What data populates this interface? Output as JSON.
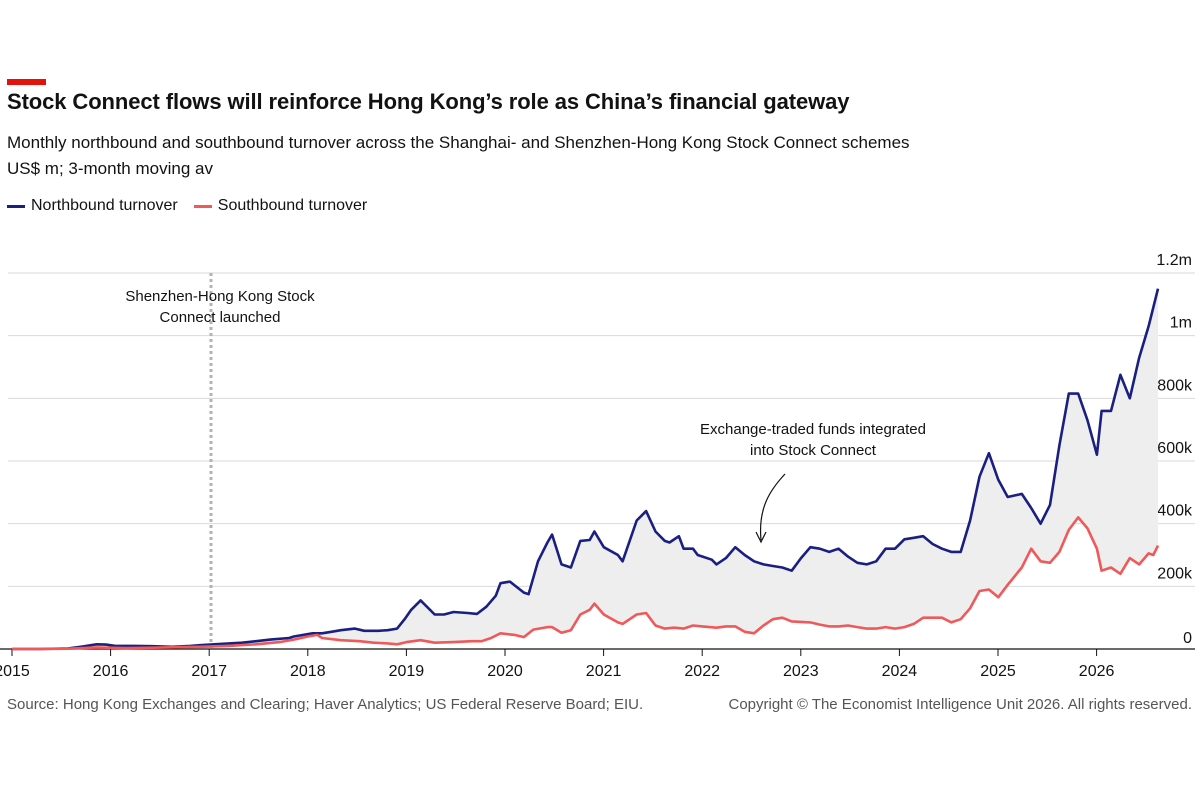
{
  "header": {
    "title": "Stock Connect flows will reinforce Hong Kong’s role as China’s financial gateway",
    "subtitle": "Monthly northbound and southbound turnover across the Shanghai- and Shenzhen-Hong Kong Stock Connect schemes",
    "units": "US$ m; 3-month moving av"
  },
  "colors": {
    "accent": "#e3120b",
    "northbound": "#1a1f80",
    "southbound": "#f0585a",
    "fill": "#eeeeee",
    "grid": "#d9d9d9"
  },
  "footer": {
    "source": "Source: Hong Kong Exchanges and Clearing; Haver Analytics; US Federal Reserve Board; EIU.",
    "copyright": "Copyright © The Economist Intelligence Unit 2026. All rights reserved."
  },
  "chart_data": {
    "type": "line",
    "title": "Stock Connect flows will reinforce Hong Kong’s role as China’s financial gateway",
    "ylabel": "US$ m; 3-month moving av",
    "xlim": [
      2015,
      2026.65
    ],
    "ylim": [
      0,
      1200000
    ],
    "grid": true,
    "legend": "top-left",
    "y_ticks": [
      {
        "value": 0,
        "label": "0"
      },
      {
        "value": 200000,
        "label": "200k"
      },
      {
        "value": 400000,
        "label": "400k"
      },
      {
        "value": 600000,
        "label": "600k"
      },
      {
        "value": 800000,
        "label": "800k"
      },
      {
        "value": 1000000,
        "label": "1m"
      },
      {
        "value": 1200000,
        "label": "1.2m"
      }
    ],
    "x_ticks": [
      {
        "value": 2015,
        "label": "2015"
      },
      {
        "value": 2016,
        "label": "2016"
      },
      {
        "value": 2017,
        "label": "2017"
      },
      {
        "value": 2018,
        "label": "2018"
      },
      {
        "value": 2019,
        "label": "2019"
      },
      {
        "value": 2020,
        "label": "2020"
      },
      {
        "value": 2021,
        "label": "2021"
      },
      {
        "value": 2022,
        "label": "2022"
      },
      {
        "value": 2023,
        "label": "2023"
      },
      {
        "value": 2024,
        "label": "2024"
      },
      {
        "value": 2025,
        "label": "2025"
      },
      {
        "value": 2026,
        "label": "2026"
      }
    ],
    "annotations": [
      {
        "lines": [
          "Shenzhen-Hong Kong Stock",
          "Connect launched"
        ],
        "x": 2016.95,
        "type": "vline"
      },
      {
        "lines": [
          "Exchange-traded funds integrated",
          "into Stock Connect"
        ],
        "x": 2022.5,
        "y": 330000,
        "type": "arrow"
      }
    ],
    "series": [
      {
        "name": "Northbound turnover",
        "points": [
          [
            2015.0,
            0
          ],
          [
            2015.3,
            0
          ],
          [
            2015.6,
            2000
          ],
          [
            2015.75,
            8000
          ],
          [
            2015.9,
            15000
          ],
          [
            2016.0,
            14000
          ],
          [
            2016.1,
            10000
          ],
          [
            2016.3,
            10000
          ],
          [
            2016.5,
            9000
          ],
          [
            2016.7,
            7000
          ],
          [
            2016.9,
            10000
          ],
          [
            2017.0,
            12000
          ],
          [
            2017.2,
            16000
          ],
          [
            2017.45,
            20000
          ],
          [
            2017.6,
            25000
          ],
          [
            2017.75,
            30000
          ],
          [
            2017.95,
            35000
          ],
          [
            2018.0,
            40000
          ],
          [
            2018.1,
            45000
          ],
          [
            2018.2,
            50000
          ],
          [
            2018.3,
            50000
          ],
          [
            2018.4,
            55000
          ],
          [
            2018.5,
            60000
          ],
          [
            2018.65,
            65000
          ],
          [
            2018.75,
            58000
          ],
          [
            2018.9,
            58000
          ],
          [
            2019.0,
            60000
          ],
          [
            2019.1,
            65000
          ],
          [
            2019.18,
            95000
          ],
          [
            2019.25,
            125000
          ],
          [
            2019.35,
            155000
          ],
          [
            2019.5,
            110000
          ],
          [
            2019.6,
            110000
          ],
          [
            2019.7,
            118000
          ],
          [
            2019.85,
            115000
          ],
          [
            2019.95,
            112000
          ],
          [
            2020.05,
            135000
          ],
          [
            2020.15,
            170000
          ],
          [
            2020.2,
            210000
          ],
          [
            2020.3,
            215000
          ],
          [
            2020.45,
            180000
          ],
          [
            2020.5,
            175000
          ],
          [
            2020.6,
            280000
          ],
          [
            2020.7,
            340000
          ],
          [
            2020.75,
            365000
          ],
          [
            2020.85,
            270000
          ],
          [
            2020.95,
            260000
          ],
          [
            2021.05,
            345000
          ],
          [
            2021.15,
            348000
          ],
          [
            2021.2,
            375000
          ],
          [
            2021.3,
            325000
          ],
          [
            2021.45,
            300000
          ],
          [
            2021.5,
            280000
          ],
          [
            2021.65,
            410000
          ],
          [
            2021.75,
            440000
          ],
          [
            2021.85,
            375000
          ],
          [
            2021.95,
            345000
          ],
          [
            2022.0,
            340000
          ],
          [
            2022.1,
            360000
          ],
          [
            2022.15,
            320000
          ],
          [
            2022.25,
            320000
          ],
          [
            2022.3,
            300000
          ],
          [
            2022.45,
            285000
          ],
          [
            2022.5,
            270000
          ],
          [
            2022.6,
            290000
          ],
          [
            2022.7,
            325000
          ],
          [
            2022.8,
            300000
          ],
          [
            2022.9,
            280000
          ],
          [
            2023.0,
            270000
          ],
          [
            2023.1,
            265000
          ],
          [
            2023.2,
            260000
          ],
          [
            2023.3,
            250000
          ],
          [
            2023.4,
            290000
          ],
          [
            2023.5,
            325000
          ],
          [
            2023.6,
            320000
          ],
          [
            2023.7,
            310000
          ],
          [
            2023.8,
            320000
          ],
          [
            2023.9,
            295000
          ],
          [
            2024.0,
            275000
          ],
          [
            2024.1,
            270000
          ],
          [
            2024.2,
            280000
          ],
          [
            2024.3,
            320000
          ],
          [
            2024.4,
            320000
          ],
          [
            2024.5,
            350000
          ],
          [
            2024.6,
            355000
          ],
          [
            2024.7,
            360000
          ],
          [
            2024.8,
            335000
          ],
          [
            2024.9,
            320000
          ],
          [
            2025.0,
            310000
          ],
          [
            2025.1,
            310000
          ],
          [
            2025.2,
            410000
          ],
          [
            2025.3,
            550000
          ],
          [
            2025.4,
            625000
          ],
          [
            2025.5,
            540000
          ],
          [
            2025.6,
            485000
          ],
          [
            2025.75,
            495000
          ],
          [
            2025.85,
            450000
          ],
          [
            2025.95,
            400000
          ],
          [
            2026.05,
            460000
          ],
          [
            2026.15,
            650000
          ],
          [
            2026.25,
            815000
          ],
          [
            2026.35,
            815000
          ],
          [
            2026.45,
            730000
          ],
          [
            2026.55,
            620000
          ],
          [
            2026.6,
            760000
          ],
          [
            2026.7,
            760000
          ],
          [
            2026.8,
            875000
          ],
          [
            2026.9,
            800000
          ],
          [
            2027.0,
            930000
          ],
          [
            2027.1,
            1030000
          ],
          [
            2027.2,
            1150000
          ]
        ]
      },
      {
        "name": "Southbound turnover",
        "points": [
          [
            2015.0,
            0
          ],
          [
            2015.3,
            0
          ],
          [
            2015.6,
            1000
          ],
          [
            2015.75,
            3000
          ],
          [
            2015.9,
            5000
          ],
          [
            2016.0,
            4000
          ],
          [
            2016.2,
            3000
          ],
          [
            2016.5,
            4000
          ],
          [
            2016.8,
            6000
          ],
          [
            2017.0,
            7000
          ],
          [
            2017.3,
            10000
          ],
          [
            2017.6,
            15000
          ],
          [
            2017.85,
            22000
          ],
          [
            2018.0,
            30000
          ],
          [
            2018.15,
            40000
          ],
          [
            2018.25,
            45000
          ],
          [
            2018.3,
            35000
          ],
          [
            2018.5,
            28000
          ],
          [
            2018.7,
            25000
          ],
          [
            2018.85,
            20000
          ],
          [
            2019.0,
            18000
          ],
          [
            2019.1,
            15000
          ],
          [
            2019.2,
            22000
          ],
          [
            2019.35,
            28000
          ],
          [
            2019.5,
            20000
          ],
          [
            2019.7,
            22000
          ],
          [
            2019.9,
            25000
          ],
          [
            2020.0,
            25000
          ],
          [
            2020.1,
            35000
          ],
          [
            2020.2,
            50000
          ],
          [
            2020.35,
            45000
          ],
          [
            2020.45,
            38000
          ],
          [
            2020.55,
            62000
          ],
          [
            2020.7,
            70000
          ],
          [
            2020.75,
            70000
          ],
          [
            2020.85,
            52000
          ],
          [
            2020.95,
            60000
          ],
          [
            2021.05,
            110000
          ],
          [
            2021.15,
            125000
          ],
          [
            2021.2,
            145000
          ],
          [
            2021.3,
            110000
          ],
          [
            2021.45,
            85000
          ],
          [
            2021.5,
            80000
          ],
          [
            2021.65,
            110000
          ],
          [
            2021.75,
            115000
          ],
          [
            2021.85,
            75000
          ],
          [
            2021.95,
            65000
          ],
          [
            2022.05,
            68000
          ],
          [
            2022.15,
            65000
          ],
          [
            2022.25,
            75000
          ],
          [
            2022.35,
            72000
          ],
          [
            2022.5,
            68000
          ],
          [
            2022.6,
            72000
          ],
          [
            2022.7,
            72000
          ],
          [
            2022.8,
            55000
          ],
          [
            2022.9,
            50000
          ],
          [
            2023.0,
            75000
          ],
          [
            2023.1,
            95000
          ],
          [
            2023.2,
            100000
          ],
          [
            2023.3,
            88000
          ],
          [
            2023.5,
            85000
          ],
          [
            2023.6,
            78000
          ],
          [
            2023.7,
            72000
          ],
          [
            2023.8,
            72000
          ],
          [
            2023.9,
            75000
          ],
          [
            2024.0,
            70000
          ],
          [
            2024.1,
            65000
          ],
          [
            2024.2,
            65000
          ],
          [
            2024.3,
            70000
          ],
          [
            2024.4,
            65000
          ],
          [
            2024.5,
            70000
          ],
          [
            2024.6,
            80000
          ],
          [
            2024.7,
            100000
          ],
          [
            2024.8,
            100000
          ],
          [
            2024.9,
            100000
          ],
          [
            2025.0,
            85000
          ],
          [
            2025.1,
            95000
          ],
          [
            2025.2,
            130000
          ],
          [
            2025.3,
            185000
          ],
          [
            2025.4,
            190000
          ],
          [
            2025.5,
            165000
          ],
          [
            2025.6,
            205000
          ],
          [
            2025.75,
            260000
          ],
          [
            2025.85,
            320000
          ],
          [
            2025.95,
            280000
          ],
          [
            2026.05,
            275000
          ],
          [
            2026.15,
            310000
          ],
          [
            2026.25,
            380000
          ],
          [
            2026.35,
            420000
          ],
          [
            2026.45,
            385000
          ],
          [
            2026.55,
            320000
          ],
          [
            2026.6,
            250000
          ],
          [
            2026.7,
            260000
          ],
          [
            2026.8,
            240000
          ],
          [
            2026.9,
            290000
          ],
          [
            2027.0,
            270000
          ],
          [
            2027.1,
            305000
          ],
          [
            2027.15,
            300000
          ],
          [
            2027.2,
            330000
          ]
        ]
      }
    ]
  }
}
